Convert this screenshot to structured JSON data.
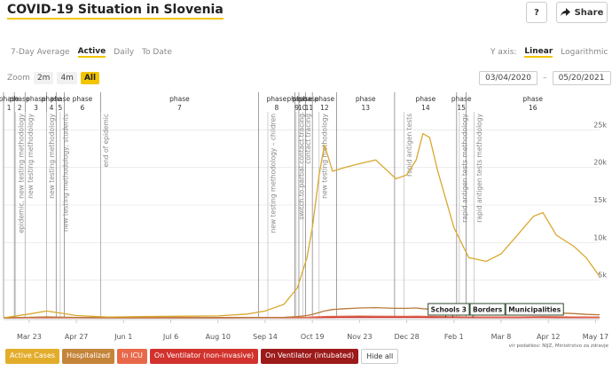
{
  "header": {
    "title": "COVID-19 Situation in Slovenia",
    "help": "?",
    "share": "Share"
  },
  "tabs": {
    "items": [
      "7-Day Average",
      "Active",
      "Daily",
      "To Date"
    ],
    "selected": 1
  },
  "y_axis_toggle": {
    "label": "Y axis:",
    "items": [
      "Linear",
      "Logarithmic"
    ],
    "selected": 0
  },
  "zoom": {
    "label": "Zoom",
    "items": [
      "2m",
      "4m",
      "All"
    ],
    "selected": 2
  },
  "date_range": {
    "from": "03/04/2020",
    "separator": "–",
    "to": "05/20/2021"
  },
  "chart_data": {
    "type": "line",
    "x": [
      "2020-03-04",
      "2020-03-23",
      "2020-04-05",
      "2020-04-27",
      "2020-05-20",
      "2020-06-15",
      "2020-07-10",
      "2020-08-10",
      "2020-09-01",
      "2020-09-14",
      "2020-09-28",
      "2020-10-08",
      "2020-10-15",
      "2020-10-19",
      "2020-10-24",
      "2020-10-28",
      "2020-11-03",
      "2020-11-12",
      "2020-11-23",
      "2020-12-05",
      "2020-12-20",
      "2020-12-28",
      "2021-01-04",
      "2021-01-09",
      "2021-01-14",
      "2021-01-20",
      "2021-02-01",
      "2021-02-12",
      "2021-02-25",
      "2021-03-08",
      "2021-03-20",
      "2021-04-01",
      "2021-04-08",
      "2021-04-18",
      "2021-05-01",
      "2021-05-10",
      "2021-05-20"
    ],
    "series": [
      {
        "name": "Active Cases",
        "color": "#d9a82e",
        "button_color": "#e3ad2c",
        "values": [
          0,
          500,
          900,
          300,
          100,
          150,
          200,
          250,
          500,
          900,
          1800,
          4000,
          8000,
          12000,
          19000,
          23000,
          19500,
          20000,
          20500,
          21000,
          18500,
          19000,
          21000,
          24500,
          24000,
          19500,
          12000,
          8000,
          7500,
          8500,
          11000,
          13500,
          14000,
          11000,
          9500,
          8000,
          5500
        ]
      },
      {
        "name": "Hospitalized",
        "color": "#b9783a",
        "button_color": "#c4843a",
        "values": [
          0,
          60,
          120,
          50,
          20,
          10,
          15,
          20,
          30,
          40,
          60,
          150,
          300,
          450,
          700,
          900,
          1100,
          1200,
          1300,
          1350,
          1250,
          1250,
          1300,
          1200,
          1150,
          1000,
          850,
          650,
          550,
          500,
          550,
          650,
          700,
          650,
          550,
          450,
          400
        ]
      },
      {
        "name": "In ICU",
        "color": "#e06a4d",
        "button_color": "#e8694a",
        "values": [
          0,
          20,
          35,
          15,
          5,
          3,
          4,
          5,
          8,
          10,
          15,
          30,
          60,
          90,
          130,
          160,
          190,
          200,
          210,
          200,
          190,
          190,
          200,
          190,
          180,
          160,
          130,
          110,
          100,
          100,
          110,
          130,
          140,
          130,
          110,
          95,
          80
        ]
      },
      {
        "name": "On Ventilator (non-invasive)",
        "color": "#c83232",
        "button_color": "#d2322d",
        "values": [
          0,
          0,
          0,
          0,
          0,
          0,
          0,
          0,
          0,
          0,
          0,
          5,
          10,
          15,
          25,
          30,
          40,
          45,
          50,
          50,
          45,
          45,
          50,
          45,
          40,
          35,
          30,
          25,
          20,
          20,
          25,
          30,
          30,
          28,
          25,
          20,
          15
        ]
      },
      {
        "name": "On Ventilator (intubated)",
        "color": "#8b1616",
        "button_color": "#9c1a1a",
        "values": [
          0,
          15,
          25,
          10,
          3,
          2,
          3,
          4,
          6,
          8,
          10,
          20,
          40,
          60,
          90,
          110,
          130,
          140,
          150,
          140,
          135,
          135,
          140,
          135,
          125,
          110,
          90,
          75,
          70,
          70,
          80,
          90,
          100,
          90,
          80,
          70,
          60
        ]
      }
    ],
    "xlim": [
      "2020-03-04",
      "2021-05-20"
    ],
    "xticks": [
      {
        "value": "2020-03-23",
        "label": "Mar 23"
      },
      {
        "value": "2020-04-27",
        "label": "Apr 27"
      },
      {
        "value": "2020-06-01",
        "label": "Jun 1"
      },
      {
        "value": "2020-07-06",
        "label": "Jul 6"
      },
      {
        "value": "2020-08-10",
        "label": "Aug 10"
      },
      {
        "value": "2020-09-14",
        "label": "Sep 14"
      },
      {
        "value": "2020-10-19",
        "label": "Oct 19"
      },
      {
        "value": "2020-11-23",
        "label": "Nov 23"
      },
      {
        "value": "2020-12-28",
        "label": "Dec 28"
      },
      {
        "value": "2021-02-01",
        "label": "Feb 1"
      },
      {
        "value": "2021-03-08",
        "label": "Mar 8"
      },
      {
        "value": "2021-04-12",
        "label": "Apr 12"
      },
      {
        "value": "2021-05-17",
        "label": "May 17"
      }
    ],
    "ylim": [
      0,
      30000
    ],
    "yticks": [
      {
        "value": 5000,
        "label": "5k"
      },
      {
        "value": 10000,
        "label": "10k"
      },
      {
        "value": 15000,
        "label": "15k"
      },
      {
        "value": 20000,
        "label": "20k"
      },
      {
        "value": 25000,
        "label": "25k"
      }
    ],
    "grid": true,
    "phases": [
      {
        "label": "phase",
        "number": 1,
        "start": "2020-03-04"
      },
      {
        "label": "phase",
        "number": 2,
        "start": "2020-03-12"
      },
      {
        "label": "phase",
        "number": 3,
        "start": "2020-03-20"
      },
      {
        "label": "phase",
        "number": 4,
        "start": "2020-04-05"
      },
      {
        "label": "phase",
        "number": 5,
        "start": "2020-04-12"
      },
      {
        "label": "phase",
        "number": 6,
        "start": "2020-04-18"
      },
      {
        "label": "phase",
        "number": 7,
        "start": "2020-05-15"
      },
      {
        "label": "phase",
        "number": 8,
        "start": "2020-09-09"
      },
      {
        "label": "phase",
        "number": 9,
        "start": "2020-10-06"
      },
      {
        "label": "phase",
        "number": 10,
        "start": "2020-10-09"
      },
      {
        "label": "phase",
        "number": 11,
        "start": "2020-10-14"
      },
      {
        "label": "phase",
        "number": 12,
        "start": "2020-10-19"
      },
      {
        "label": "phase",
        "number": 13,
        "start": "2020-11-06"
      },
      {
        "label": "phase",
        "number": 14,
        "start": "2020-12-19"
      },
      {
        "label": "phase",
        "number": 15,
        "start": "2021-02-03"
      },
      {
        "label": "phase",
        "number": 16,
        "start": "2021-02-10"
      }
    ],
    "events": [
      {
        "label": "epidemic, new testing methodology",
        "date": "2020-03-13"
      },
      {
        "label": "new testing methodology",
        "date": "2020-03-20"
      },
      {
        "label": "new testing methodology",
        "date": "2020-04-05"
      },
      {
        "label": "new testing methodology, students",
        "date": "2020-04-15"
      },
      {
        "label": "end of epidemic",
        "date": "2020-05-15"
      },
      {
        "label": "new testing methodology – children",
        "date": "2020-09-16"
      },
      {
        "label": "switch to partial contact tracing",
        "date": "2020-10-07"
      },
      {
        "label": "contact tracing",
        "date": "2020-10-12"
      },
      {
        "label": "new testing methodology",
        "date": "2020-10-24"
      },
      {
        "label": "rapid antigen tests",
        "date": "2020-12-26"
      },
      {
        "label": "rapid antigen tests methodology",
        "date": "2021-02-05"
      },
      {
        "label": "rapid antigen tests methodology",
        "date": "2021-02-16"
      }
    ],
    "annotations": [
      {
        "label": "Schools 3",
        "date": "2021-01-26"
      },
      {
        "label": "Borders",
        "date": "2021-01-31"
      },
      {
        "label": "Municipalities",
        "date": "2021-02-15"
      }
    ],
    "source": "vir podatkov: NIJZ, Ministrstvo za zdravje",
    "hide_all": "Hide all"
  }
}
